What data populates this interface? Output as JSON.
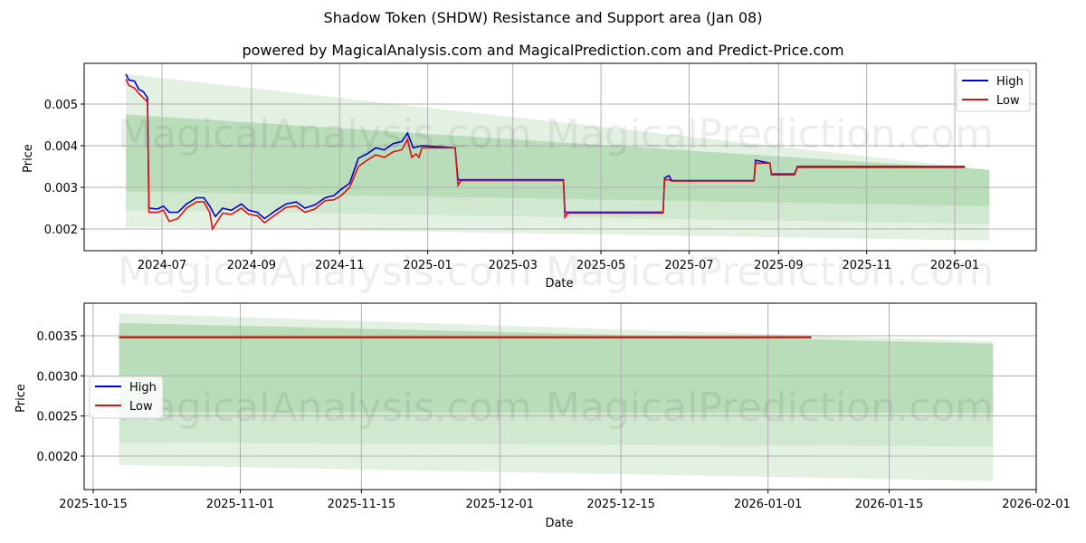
{
  "header": {
    "title": "Shadow Token (SHDW) Resistance and Support area (Jan 08)",
    "subtitle": "powered by MagicalAnalysis.com and MagicalPrediction.com and Predict-Price.com"
  },
  "watermarks": [
    "MagicalAnalysis.com",
    "MagicalPrediction.com"
  ],
  "colors": {
    "high": "#0000cc",
    "low": "#dd1111",
    "band_outer": "#e3f1e3",
    "band_mid": "#d0e8d0",
    "band_inner": "#b9dcb9",
    "grid": "#b0b0b0"
  },
  "chart_data": [
    {
      "type": "line",
      "title": "Shadow Token (SHDW) Resistance and Support area (Jan 08)",
      "xlabel": "Date",
      "ylabel": "Price",
      "ylim": [
        0.00145,
        0.00588
      ],
      "x_ticks": [
        "2024-07",
        "2024-09",
        "2024-11",
        "2025-01",
        "2025-03",
        "2025-05",
        "2025-07",
        "2025-09",
        "2025-11",
        "2026-01"
      ],
      "y_ticks": [
        "0.002",
        "0.003",
        "0.004",
        "0.005"
      ],
      "grid": true,
      "legend": {
        "position": "upper right",
        "entries": [
          "High",
          "Low"
        ]
      },
      "series": [
        {
          "name": "High",
          "points": [
            [
              "2024-06-06",
              0.00572
            ],
            [
              "2024-06-08",
              0.00558
            ],
            [
              "2024-06-12",
              0.00555
            ],
            [
              "2024-06-15",
              0.00535
            ],
            [
              "2024-06-18",
              0.0053
            ],
            [
              "2024-06-21",
              0.00515
            ],
            [
              "2024-06-22",
              0.0025
            ],
            [
              "2024-06-28",
              0.00248
            ],
            [
              "2024-07-02",
              0.00255
            ],
            [
              "2024-07-06",
              0.0024
            ],
            [
              "2024-07-12",
              0.0024
            ],
            [
              "2024-07-18",
              0.0026
            ],
            [
              "2024-07-25",
              0.00275
            ],
            [
              "2024-07-30",
              0.00275
            ],
            [
              "2024-08-03",
              0.00255
            ],
            [
              "2024-08-07",
              0.0023
            ],
            [
              "2024-08-12",
              0.0025
            ],
            [
              "2024-08-18",
              0.00245
            ],
            [
              "2024-08-25",
              0.0026
            ],
            [
              "2024-08-30",
              0.00245
            ],
            [
              "2024-09-05",
              0.0024
            ],
            [
              "2024-09-10",
              0.00225
            ],
            [
              "2024-09-18",
              0.00245
            ],
            [
              "2024-09-25",
              0.0026
            ],
            [
              "2024-10-02",
              0.00265
            ],
            [
              "2024-10-08",
              0.0025
            ],
            [
              "2024-10-15",
              0.00258
            ],
            [
              "2024-10-22",
              0.00275
            ],
            [
              "2024-10-28",
              0.0028
            ],
            [
              "2024-11-02",
              0.00295
            ],
            [
              "2024-11-08",
              0.0031
            ],
            [
              "2024-11-14",
              0.0037
            ],
            [
              "2024-11-20",
              0.0038
            ],
            [
              "2024-11-26",
              0.00395
            ],
            [
              "2024-12-02",
              0.0039
            ],
            [
              "2024-12-08",
              0.00405
            ],
            [
              "2024-12-14",
              0.0041
            ],
            [
              "2024-12-18",
              0.0043
            ],
            [
              "2024-12-22",
              0.00395
            ],
            [
              "2024-12-28",
              0.004
            ],
            [
              "2025-01-20",
              0.00395
            ],
            [
              "2025-01-22",
              0.00318
            ],
            [
              "2025-04-05",
              0.00318
            ],
            [
              "2025-04-06",
              0.0024
            ],
            [
              "2025-06-13",
              0.0024
            ],
            [
              "2025-06-14",
              0.00322
            ],
            [
              "2025-06-17",
              0.00328
            ],
            [
              "2025-06-19",
              0.00316
            ],
            [
              "2025-08-15",
              0.00316
            ],
            [
              "2025-08-16",
              0.00365
            ],
            [
              "2025-08-26",
              0.00358
            ],
            [
              "2025-08-27",
              0.00332
            ],
            [
              "2025-09-12",
              0.00332
            ],
            [
              "2025-09-14",
              0.0035
            ],
            [
              "2026-01-08",
              0.0035
            ]
          ]
        },
        {
          "name": "Low",
          "points": [
            [
              "2024-06-06",
              0.0056
            ],
            [
              "2024-06-08",
              0.00545
            ],
            [
              "2024-06-12",
              0.00538
            ],
            [
              "2024-06-15",
              0.00525
            ],
            [
              "2024-06-18",
              0.00515
            ],
            [
              "2024-06-21",
              0.00505
            ],
            [
              "2024-06-22",
              0.0024
            ],
            [
              "2024-06-28",
              0.0024
            ],
            [
              "2024-07-02",
              0.00245
            ],
            [
              "2024-07-06",
              0.00218
            ],
            [
              "2024-07-12",
              0.00225
            ],
            [
              "2024-07-18",
              0.0025
            ],
            [
              "2024-07-25",
              0.00265
            ],
            [
              "2024-07-30",
              0.00265
            ],
            [
              "2024-08-03",
              0.0024
            ],
            [
              "2024-08-05",
              0.002
            ],
            [
              "2024-08-12",
              0.00238
            ],
            [
              "2024-08-18",
              0.00235
            ],
            [
              "2024-08-25",
              0.0025
            ],
            [
              "2024-08-30",
              0.00235
            ],
            [
              "2024-09-05",
              0.00232
            ],
            [
              "2024-09-10",
              0.00215
            ],
            [
              "2024-09-18",
              0.00235
            ],
            [
              "2024-09-25",
              0.00252
            ],
            [
              "2024-10-02",
              0.00255
            ],
            [
              "2024-10-08",
              0.0024
            ],
            [
              "2024-10-15",
              0.00248
            ],
            [
              "2024-10-22",
              0.00268
            ],
            [
              "2024-10-28",
              0.0027
            ],
            [
              "2024-11-02",
              0.0028
            ],
            [
              "2024-11-08",
              0.003
            ],
            [
              "2024-11-14",
              0.0035
            ],
            [
              "2024-11-20",
              0.00365
            ],
            [
              "2024-11-26",
              0.00378
            ],
            [
              "2024-12-02",
              0.00372
            ],
            [
              "2024-12-08",
              0.00385
            ],
            [
              "2024-12-14",
              0.0039
            ],
            [
              "2024-12-18",
              0.00415
            ],
            [
              "2024-12-21",
              0.00372
            ],
            [
              "2024-12-24",
              0.0038
            ],
            [
              "2024-12-26",
              0.00372
            ],
            [
              "2024-12-28",
              0.00395
            ],
            [
              "2025-01-20",
              0.00395
            ],
            [
              "2025-01-22",
              0.00305
            ],
            [
              "2025-01-24",
              0.00316
            ],
            [
              "2025-04-05",
              0.00316
            ],
            [
              "2025-04-06",
              0.00228
            ],
            [
              "2025-04-08",
              0.00238
            ],
            [
              "2025-06-13",
              0.00238
            ],
            [
              "2025-06-14",
              0.00318
            ],
            [
              "2025-06-17",
              0.00318
            ],
            [
              "2025-06-19",
              0.00315
            ],
            [
              "2025-08-15",
              0.00315
            ],
            [
              "2025-08-16",
              0.00358
            ],
            [
              "2025-08-26",
              0.00358
            ],
            [
              "2025-08-27",
              0.0033
            ],
            [
              "2025-09-12",
              0.0033
            ],
            [
              "2025-09-14",
              0.00348
            ],
            [
              "2026-01-08",
              0.00348
            ]
          ]
        }
      ],
      "bands": [
        {
          "name": "outer",
          "x_start": "2024-06-06",
          "x_end": "2026-01-25",
          "upper": [
            0.00572,
            0.00342
          ],
          "lower": [
            0.00205,
            0.00172
          ]
        },
        {
          "name": "mid",
          "x_start": "2024-06-06",
          "x_end": "2026-01-25",
          "upper": [
            0.00475,
            0.00342
          ],
          "lower": [
            0.00245,
            0.00212
          ]
        },
        {
          "name": "inner",
          "x_start": "2024-06-06",
          "x_end": "2026-01-25",
          "upper": [
            0.00475,
            0.00342
          ],
          "lower": [
            0.0029,
            0.00255
          ]
        }
      ]
    },
    {
      "type": "line",
      "title": "",
      "xlabel": "Date",
      "ylabel": "Price",
      "ylim": [
        0.00157,
        0.00388
      ],
      "x_ticks": [
        "2025-10-15",
        "2025-11-01",
        "2025-11-15",
        "2025-12-01",
        "2025-12-15",
        "2026-01-01",
        "2026-01-15",
        "2026-02-01"
      ],
      "y_ticks": [
        "0.0020",
        "0.0025",
        "0.0030",
        "0.0035"
      ],
      "grid": true,
      "legend": {
        "position": "center left",
        "entries": [
          "High",
          "Low"
        ]
      },
      "series": [
        {
          "name": "High",
          "points": [
            [
              "2025-10-18",
              0.00348
            ],
            [
              "2026-01-06",
              0.00348
            ]
          ]
        },
        {
          "name": "Low",
          "points": [
            [
              "2025-10-18",
              0.00348
            ],
            [
              "2026-01-06",
              0.00348
            ]
          ]
        }
      ],
      "bands": [
        {
          "name": "outer",
          "x_start": "2025-10-18",
          "x_end": "2026-01-27",
          "upper": [
            0.00378,
            0.00343
          ],
          "lower": [
            0.00189,
            0.00169
          ]
        },
        {
          "name": "mid",
          "x_start": "2025-10-18",
          "x_end": "2026-01-27",
          "upper": [
            0.00366,
            0.0034
          ],
          "lower": [
            0.00217,
            0.00212
          ]
        },
        {
          "name": "inner",
          "x_start": "2025-10-18",
          "x_end": "2026-01-27",
          "upper": [
            0.00366,
            0.0034
          ],
          "lower": [
            0.00255,
            0.00254
          ]
        }
      ]
    }
  ],
  "legend": {
    "high_label": "High",
    "low_label": "Low"
  }
}
